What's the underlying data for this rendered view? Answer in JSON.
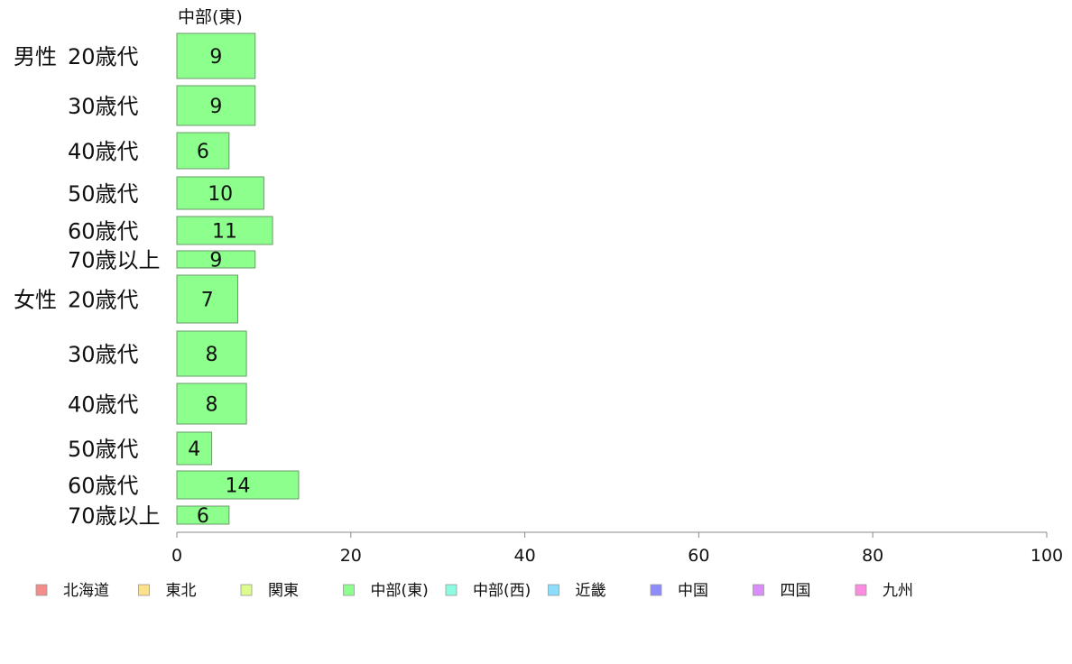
{
  "chart_data": {
    "type": "bar",
    "orientation": "horizontal",
    "title": "中部(東)",
    "xlim": [
      0,
      100
    ],
    "xticks": [
      0,
      20,
      40,
      60,
      80,
      100
    ],
    "grid": false,
    "legend_position": "bottom",
    "groups": [
      {
        "name": "男性",
        "categories": [
          "20歳代",
          "30歳代",
          "40歳代",
          "50歳代",
          "60歳代",
          "70歳以上"
        ]
      },
      {
        "name": "女性",
        "categories": [
          "20歳代",
          "30歳代",
          "40歳代",
          "50歳代",
          "60歳代",
          "70歳以上"
        ]
      }
    ],
    "series": [
      {
        "name": "中部(東)",
        "color": "#8cff8c",
        "values": [
          9,
          9,
          6,
          10,
          11,
          9,
          7,
          8,
          8,
          4,
          14,
          6
        ]
      }
    ],
    "legend": [
      {
        "name": "北海道",
        "color": "#f48c8c"
      },
      {
        "name": "東北",
        "color": "#fde08c"
      },
      {
        "name": "関東",
        "color": "#dcfc8c"
      },
      {
        "name": "中部(東)",
        "color": "#8cff8c"
      },
      {
        "name": "中部(西)",
        "color": "#8cfce0"
      },
      {
        "name": "近畿",
        "color": "#8cdcfc"
      },
      {
        "name": "中国",
        "color": "#8c8cfc"
      },
      {
        "name": "四国",
        "color": "#dc8cfc"
      },
      {
        "name": "九州",
        "color": "#fc8ce0"
      }
    ]
  }
}
